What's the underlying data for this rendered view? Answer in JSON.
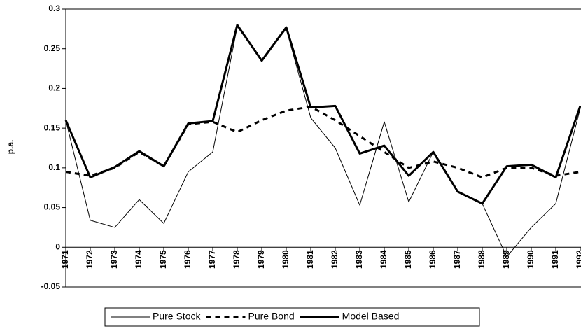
{
  "chart_data": {
    "type": "line",
    "y_label": "p.a.",
    "categories": [
      "1971",
      "1972",
      "1973",
      "1974",
      "1975",
      "1976",
      "1977",
      "1978",
      "1979",
      "1980",
      "1981",
      "1982",
      "1983",
      "1984",
      "1985",
      "1986",
      "1987",
      "1988",
      "1989",
      "1990",
      "1991",
      "1992"
    ],
    "series": [
      {
        "name": "Pure Stock",
        "color": "#000000",
        "style": "thin",
        "values": [
          0.16,
          0.034,
          0.025,
          0.06,
          0.03,
          0.095,
          0.12,
          0.278,
          0.235,
          0.275,
          0.163,
          0.125,
          0.053,
          0.158,
          0.057,
          0.12,
          0.07,
          0.055,
          -0.012,
          0.025,
          0.055,
          0.175
        ]
      },
      {
        "name": "Pure Bond",
        "color": "#000000",
        "style": "dashed",
        "values": [
          0.095,
          0.09,
          0.1,
          0.12,
          0.102,
          0.155,
          0.158,
          0.145,
          0.16,
          0.172,
          0.177,
          0.16,
          0.14,
          0.12,
          0.1,
          0.108,
          0.1,
          0.088,
          0.1,
          0.1,
          0.09,
          0.095
        ]
      },
      {
        "name": "Model Based",
        "color": "#000000",
        "style": "thick",
        "values": [
          0.16,
          0.088,
          0.101,
          0.121,
          0.102,
          0.156,
          0.159,
          0.28,
          0.235,
          0.277,
          0.176,
          0.178,
          0.118,
          0.128,
          0.09,
          0.12,
          0.07,
          0.055,
          0.102,
          0.104,
          0.088,
          0.178
        ]
      }
    ],
    "ylim": [
      -0.05,
      0.3
    ],
    "yticks": [
      {
        "value": -0.05,
        "label": "-0.05"
      },
      0,
      0.05,
      0.1,
      0.15,
      0.2,
      0.25,
      0.3
    ],
    "legend": "bottom"
  }
}
